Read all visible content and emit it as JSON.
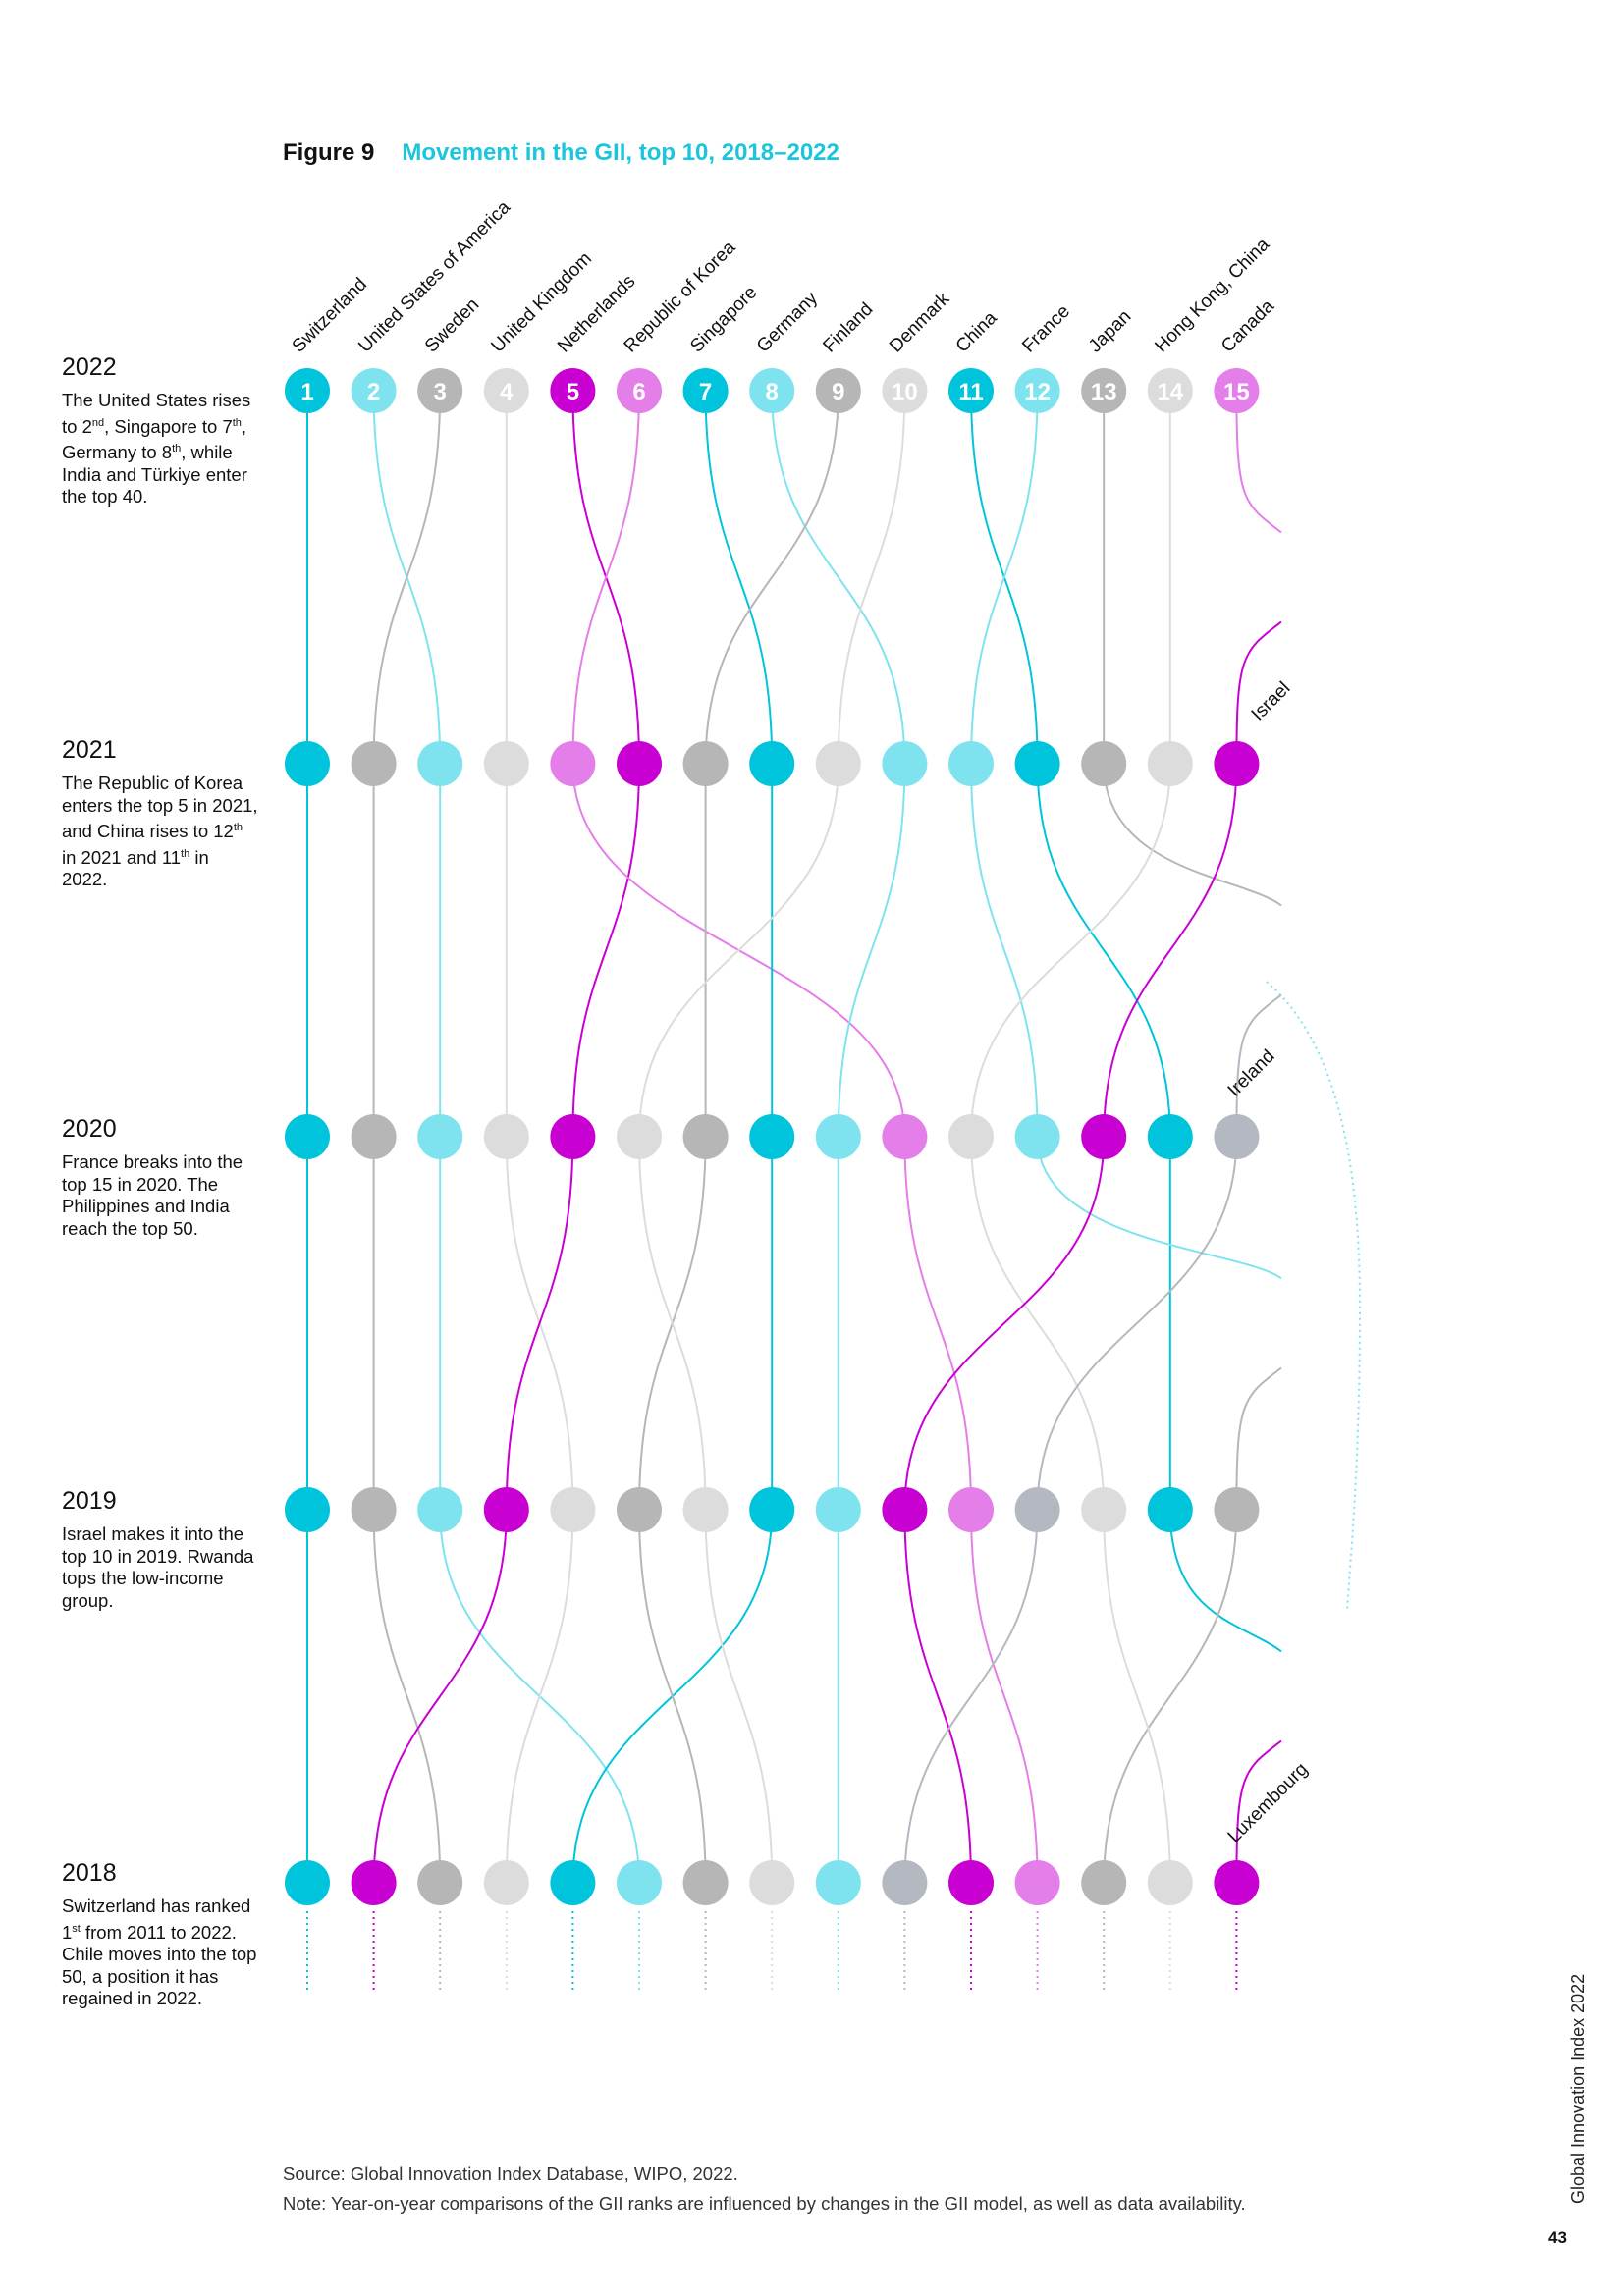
{
  "figure": {
    "number": "Figure 9",
    "title": "Movement in the GII, top 10, 2018–2022"
  },
  "years": [
    {
      "year": "2022",
      "desc": "The United States rises to 2nd, Singapore to 7th, Germany to 8th, while India and Türkiye enter the top 40."
    },
    {
      "year": "2021",
      "desc": "The Republic of Korea enters the top 5 in 2021, and China rises to 12th in 2021 and 11th in 2022."
    },
    {
      "year": "2020",
      "desc": "France breaks into the top 15 in 2020. The Philippines and India reach the top 50."
    },
    {
      "year": "2019",
      "desc": "Israel makes it into the top 10 in 2019. Rwanda tops the low-income group."
    },
    {
      "year": "2018",
      "desc": "Switzerland has ranked 1st from 2011 to 2022. Chile moves into the top 50, a position it has regained in 2022."
    }
  ],
  "colors": {
    "cyan": "#00c4dc",
    "light_cyan": "#7fe3ef",
    "magenta": "#c800d2",
    "light_magenta": "#e47ee8",
    "gray": "#b6b6b6",
    "light_gray": "#dcdcdc",
    "blue_gray": "#b4b8c0",
    "title_accent": "#1bc6dc"
  },
  "chart_data": {
    "type": "bump",
    "years": [
      "2022",
      "2021",
      "2020",
      "2019",
      "2018"
    ],
    "ranks": [
      1,
      2,
      3,
      4,
      5,
      6,
      7,
      8,
      9,
      10,
      11,
      12,
      13,
      14,
      15
    ],
    "series": [
      {
        "name": "Switzerland",
        "color": "cyan",
        "ranks": {
          "2022": 1,
          "2021": 1,
          "2020": 1,
          "2019": 1,
          "2018": 1
        }
      },
      {
        "name": "United States of America",
        "color": "light_cyan",
        "ranks": {
          "2022": 2,
          "2021": 3,
          "2020": 3,
          "2019": 3,
          "2018": 6
        }
      },
      {
        "name": "Sweden",
        "color": "gray",
        "ranks": {
          "2022": 3,
          "2021": 2,
          "2020": 2,
          "2019": 2,
          "2018": 3
        }
      },
      {
        "name": "United Kingdom",
        "color": "light_gray",
        "ranks": {
          "2022": 4,
          "2021": 4,
          "2020": 4,
          "2019": 5,
          "2018": 4
        }
      },
      {
        "name": "Netherlands",
        "color": "magenta",
        "ranks": {
          "2022": 5,
          "2021": 6,
          "2020": 5,
          "2019": 4,
          "2018": 2
        }
      },
      {
        "name": "Republic of Korea",
        "color": "light_magenta",
        "ranks": {
          "2022": 6,
          "2021": 5,
          "2020": 10,
          "2019": 11,
          "2018": 12
        }
      },
      {
        "name": "Singapore",
        "color": "cyan",
        "ranks": {
          "2022": 7,
          "2021": 8,
          "2020": 8,
          "2019": 8,
          "2018": 5
        }
      },
      {
        "name": "Germany",
        "color": "light_cyan",
        "ranks": {
          "2022": 8,
          "2021": 10,
          "2020": 9,
          "2019": 9,
          "2018": 9
        }
      },
      {
        "name": "Finland",
        "color": "gray",
        "ranks": {
          "2022": 9,
          "2021": 7,
          "2020": 7,
          "2019": 6,
          "2018": 7
        }
      },
      {
        "name": "Denmark",
        "color": "light_gray",
        "ranks": {
          "2022": 10,
          "2021": 9,
          "2020": 6,
          "2019": 7,
          "2018": 8
        }
      },
      {
        "name": "China",
        "color": "cyan",
        "ranks": {
          "2022": 11,
          "2021": 12,
          "2020": 14,
          "2019": 14,
          "2018": 17
        }
      },
      {
        "name": "France",
        "color": "light_cyan",
        "ranks": {
          "2022": 12,
          "2021": 11,
          "2020": 12,
          "2019": 16,
          "2018": 16
        }
      },
      {
        "name": "Japan",
        "color": "gray",
        "ranks": {
          "2022": 13,
          "2021": 13,
          "2020": 16,
          "2019": 15,
          "2018": 13
        }
      },
      {
        "name": "Hong Kong, China",
        "color": "light_gray",
        "ranks": {
          "2022": 14,
          "2021": 14,
          "2020": 11,
          "2019": 13,
          "2018": 14
        }
      },
      {
        "name": "Canada",
        "color": "light_magenta",
        "ranks": {
          "2022": 15,
          "2021": 16,
          "2020": 17,
          "2019": 17,
          "2018": 18
        }
      },
      {
        "name": "Israel",
        "color": "magenta",
        "ranks": {
          "2022": 16,
          "2021": 15,
          "2020": 13,
          "2019": 10,
          "2018": 11
        }
      },
      {
        "name": "Ireland",
        "color": "blue_gray",
        "ranks": {
          "2022": 23,
          "2021": 19,
          "2020": 15,
          "2019": 12,
          "2018": 10
        }
      },
      {
        "name": "Luxembourg",
        "color": "magenta",
        "ranks": {
          "2022": 18,
          "2021": 23,
          "2020": 18,
          "2019": 18,
          "2018": 15
        }
      }
    ],
    "side_labels": [
      "Israel",
      "Ireland",
      "Luxembourg"
    ]
  },
  "footer": {
    "source": "Source: Global Innovation Index Database, WIPO, 2022.",
    "note": "Note: Year-on-year comparisons of the GII ranks are influenced by changes in the GII model, as well as data availability."
  },
  "publication": "Global Innovation Index 2022",
  "page_number": "43"
}
